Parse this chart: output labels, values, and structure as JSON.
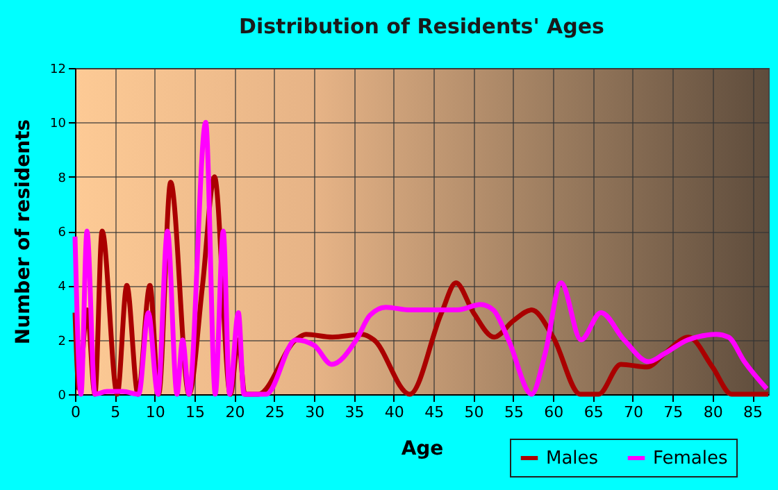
{
  "chart_data": {
    "type": "line",
    "title": "Distribution of Residents' Ages",
    "xlabel": "Age",
    "ylabel": "Number of residents",
    "xlim": [
      0,
      87
    ],
    "xticks": [
      0,
      5,
      10,
      15,
      20,
      25,
      30,
      35,
      40,
      45,
      50,
      55,
      60,
      65,
      70,
      75,
      80,
      85
    ],
    "ylim": [
      0,
      12
    ],
    "yticks": [
      0,
      2,
      4,
      6,
      8,
      10,
      12
    ],
    "grid": true,
    "legend": "bottom right",
    "series": [
      {
        "name": "Males",
        "color": "#aa0000",
        "x": [
          0,
          0.5,
          1.5,
          2.5,
          3.4,
          5.3,
          6.5,
          7.9,
          9.4,
          10.5,
          12,
          14.3,
          16,
          17.5,
          19.5,
          20.5,
          21.3,
          23,
          27.7,
          29,
          32.3,
          36,
          37.5,
          42,
          46,
          47.8,
          50,
          52.6,
          55,
          57.3,
          60,
          63.4,
          65.7,
          68.5,
          71.8,
          74,
          77,
          80,
          82.4,
          87
        ],
        "values": [
          3,
          0.2,
          3.1,
          0,
          6,
          0,
          4,
          0,
          4,
          0,
          7.8,
          0,
          4,
          8,
          0,
          2,
          0,
          0,
          2,
          2.2,
          2.1,
          2.2,
          2,
          0,
          3,
          4.1,
          3,
          2.1,
          2.7,
          3.1,
          2.1,
          0,
          0,
          1.1,
          1,
          1.5,
          2.1,
          1,
          0,
          0
        ]
      },
      {
        "name": "Females",
        "color": "#ff00ff",
        "x": [
          0,
          0.75,
          1.5,
          2.5,
          4,
          6,
          8,
          9.2,
          10.4,
          11.6,
          12.8,
          13.5,
          14.3,
          16.4,
          17.6,
          18.6,
          19.4,
          20.5,
          21.2,
          24,
          27.7,
          30,
          32.2,
          35.3,
          37,
          39,
          42,
          45,
          48,
          50.9,
          52.5,
          54.4,
          57.3,
          59,
          61,
          63.5,
          66,
          68.9,
          72,
          74,
          76.9,
          80.5,
          82,
          84,
          86.8
        ],
        "values": [
          5.8,
          0,
          6,
          0,
          0.1,
          0.1,
          0,
          3,
          0,
          6,
          0,
          2,
          0,
          10,
          0,
          6,
          0,
          3,
          0,
          0,
          2,
          1.8,
          1.1,
          2,
          2.9,
          3.2,
          3.1,
          3.1,
          3.1,
          3.3,
          3.1,
          2,
          0,
          1.5,
          4.1,
          2,
          3,
          2,
          1.2,
          1.5,
          2,
          2.2,
          2.1,
          1.2,
          0.2
        ]
      }
    ]
  }
}
